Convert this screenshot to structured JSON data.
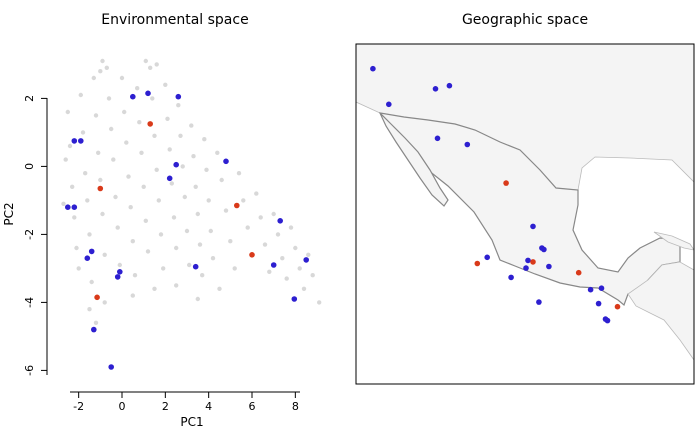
{
  "chart_data": [
    {
      "type": "scatter",
      "title": "Environmental space",
      "xlabel": "PC1",
      "ylabel": "PC2",
      "xlim": [
        -3,
        9.6
      ],
      "ylim": [
        -6.4,
        3.6
      ],
      "xticks": [
        -2,
        0,
        2,
        4,
        6,
        8
      ],
      "yticks": [
        -6,
        -4,
        -2,
        0,
        2
      ],
      "xtick_labels": [
        "-2",
        "0",
        "2",
        "4",
        "6",
        "8"
      ],
      "ytick_labels": [
        "-6",
        "-4",
        "-2",
        "0",
        "2"
      ],
      "grid": false,
      "legend": "none",
      "series": [
        {
          "role": "background",
          "color": "#d8d8d8",
          "points": [
            [
              -2.5,
              1.6
            ],
            [
              -2.4,
              0.6
            ],
            [
              -2.3,
              -0.6
            ],
            [
              -2.2,
              -1.5
            ],
            [
              -2.1,
              -2.4
            ],
            [
              -2.0,
              -3.0
            ],
            [
              -1.9,
              2.1
            ],
            [
              -1.8,
              1.0
            ],
            [
              -1.7,
              -0.2
            ],
            [
              -1.6,
              -1.0
            ],
            [
              -1.5,
              -2.0
            ],
            [
              -1.4,
              -3.4
            ],
            [
              -1.3,
              2.6
            ],
            [
              -1.2,
              1.5
            ],
            [
              -1.1,
              0.4
            ],
            [
              -1.0,
              -0.4
            ],
            [
              -0.9,
              -1.4
            ],
            [
              -0.8,
              -2.6
            ],
            [
              -0.7,
              2.9
            ],
            [
              -0.6,
              2.0
            ],
            [
              -0.5,
              1.1
            ],
            [
              -0.4,
              0.2
            ],
            [
              -0.3,
              -0.9
            ],
            [
              -0.2,
              -1.8
            ],
            [
              -0.1,
              -2.9
            ],
            [
              0.0,
              2.6
            ],
            [
              0.1,
              1.6
            ],
            [
              0.2,
              0.7
            ],
            [
              0.3,
              -0.3
            ],
            [
              0.4,
              -1.2
            ],
            [
              0.5,
              -2.2
            ],
            [
              0.6,
              -3.2
            ],
            [
              0.7,
              2.3
            ],
            [
              0.8,
              1.3
            ],
            [
              0.9,
              0.4
            ],
            [
              1.0,
              -0.6
            ],
            [
              1.1,
              -1.6
            ],
            [
              1.2,
              -2.5
            ],
            [
              1.3,
              2.9
            ],
            [
              1.4,
              2.0
            ],
            [
              1.5,
              0.9
            ],
            [
              1.6,
              -0.1
            ],
            [
              1.7,
              -1.0
            ],
            [
              1.8,
              -2.0
            ],
            [
              1.9,
              -3.0
            ],
            [
              2.0,
              2.4
            ],
            [
              2.1,
              1.4
            ],
            [
              2.2,
              0.5
            ],
            [
              2.3,
              -0.5
            ],
            [
              2.4,
              -1.5
            ],
            [
              2.5,
              -2.4
            ],
            [
              2.6,
              1.8
            ],
            [
              2.7,
              0.9
            ],
            [
              2.8,
              0.0
            ],
            [
              2.9,
              -0.9
            ],
            [
              3.0,
              -1.9
            ],
            [
              3.1,
              -2.9
            ],
            [
              3.2,
              1.2
            ],
            [
              3.3,
              0.3
            ],
            [
              3.4,
              -0.6
            ],
            [
              3.5,
              -1.4
            ],
            [
              3.6,
              -2.3
            ],
            [
              3.7,
              -3.2
            ],
            [
              3.8,
              0.8
            ],
            [
              3.9,
              -0.1
            ],
            [
              4.0,
              -1.0
            ],
            [
              4.1,
              -1.9
            ],
            [
              4.2,
              -2.7
            ],
            [
              4.4,
              0.4
            ],
            [
              4.6,
              -0.4
            ],
            [
              4.8,
              -1.3
            ],
            [
              5.0,
              -2.2
            ],
            [
              5.2,
              -3.0
            ],
            [
              5.4,
              -0.2
            ],
            [
              5.6,
              -1.0
            ],
            [
              5.8,
              -1.8
            ],
            [
              6.0,
              -2.6
            ],
            [
              6.2,
              -0.8
            ],
            [
              6.4,
              -1.5
            ],
            [
              6.6,
              -2.3
            ],
            [
              6.8,
              -3.1
            ],
            [
              7.0,
              -1.4
            ],
            [
              7.2,
              -2.0
            ],
            [
              7.4,
              -2.7
            ],
            [
              7.6,
              -3.3
            ],
            [
              7.8,
              -1.8
            ],
            [
              8.0,
              -2.4
            ],
            [
              8.2,
              -3.0
            ],
            [
              8.4,
              -3.6
            ],
            [
              8.6,
              -2.6
            ],
            [
              8.8,
              -3.2
            ],
            [
              9.1,
              -4.0
            ],
            [
              -1.5,
              -4.2
            ],
            [
              -0.8,
              -4.0
            ],
            [
              -1.2,
              -4.6
            ],
            [
              0.5,
              -3.8
            ],
            [
              1.5,
              -3.6
            ],
            [
              2.5,
              -3.5
            ],
            [
              3.5,
              -3.9
            ],
            [
              4.5,
              -3.6
            ],
            [
              -2.7,
              -1.1
            ],
            [
              -2.6,
              0.2
            ],
            [
              -0.9,
              3.1
            ],
            [
              1.1,
              3.1
            ],
            [
              1.6,
              3.0
            ],
            [
              -1.0,
              2.8
            ]
          ]
        },
        {
          "role": "occurrences",
          "color": "#2d1fd0",
          "points": [
            [
              0.5,
              2.05
            ],
            [
              1.2,
              2.15
            ],
            [
              2.6,
              2.05
            ],
            [
              -2.2,
              0.75
            ],
            [
              -1.9,
              0.75
            ],
            [
              2.5,
              0.05
            ],
            [
              4.8,
              0.15
            ],
            [
              2.2,
              -0.35
            ],
            [
              -2.5,
              -1.2
            ],
            [
              -2.2,
              -1.2
            ],
            [
              -1.4,
              -2.5
            ],
            [
              -1.6,
              -2.7
            ],
            [
              7.3,
              -1.6
            ],
            [
              8.5,
              -2.75
            ],
            [
              3.4,
              -2.95
            ],
            [
              7.0,
              -2.9
            ],
            [
              -0.1,
              -3.1
            ],
            [
              -0.2,
              -3.25
            ],
            [
              7.95,
              -3.9
            ],
            [
              -1.3,
              -4.8
            ],
            [
              -0.5,
              -5.9
            ]
          ]
        },
        {
          "role": "highlighted",
          "color": "#d93a1a",
          "points": [
            [
              1.3,
              1.25
            ],
            [
              -1.0,
              -0.65
            ],
            [
              5.3,
              -1.15
            ],
            [
              6.0,
              -2.6
            ],
            [
              -1.15,
              -3.85
            ]
          ]
        }
      ]
    },
    {
      "type": "map",
      "title": "Geographic space",
      "region_label": "",
      "land_color": "#f4f4f4",
      "border_color": "#888888",
      "series": [
        {
          "role": "occurrences",
          "color": "#2d1fd0",
          "points_lonlat": [
            [
              -116.3,
              32.4
            ],
            [
              -114.7,
              30.1
            ],
            [
              -110.0,
              31.1
            ],
            [
              -108.6,
              31.3
            ],
            [
              -109.8,
              27.9
            ],
            [
              -106.8,
              27.5
            ],
            [
              -104.8,
              20.2
            ],
            [
              -100.7,
              20.0
            ],
            [
              -100.9,
              19.5
            ],
            [
              -99.1,
              20.7
            ],
            [
              -99.3,
              20.8
            ],
            [
              -98.6,
              19.6
            ],
            [
              -100.2,
              22.2
            ],
            [
              -102.4,
              18.9
            ],
            [
              -99.6,
              17.3
            ],
            [
              -94.4,
              18.1
            ],
            [
              -93.3,
              18.2
            ],
            [
              -93.6,
              17.2
            ],
            [
              -92.7,
              16.1
            ],
            [
              -92.9,
              16.2
            ]
          ]
        },
        {
          "role": "highlighted",
          "color": "#d93a1a",
          "points_lonlat": [
            [
              -102.9,
              25.0
            ],
            [
              -105.8,
              19.8
            ],
            [
              -100.2,
              19.9
            ],
            [
              -95.6,
              19.2
            ],
            [
              -91.7,
              17.0
            ]
          ]
        }
      ]
    }
  ]
}
